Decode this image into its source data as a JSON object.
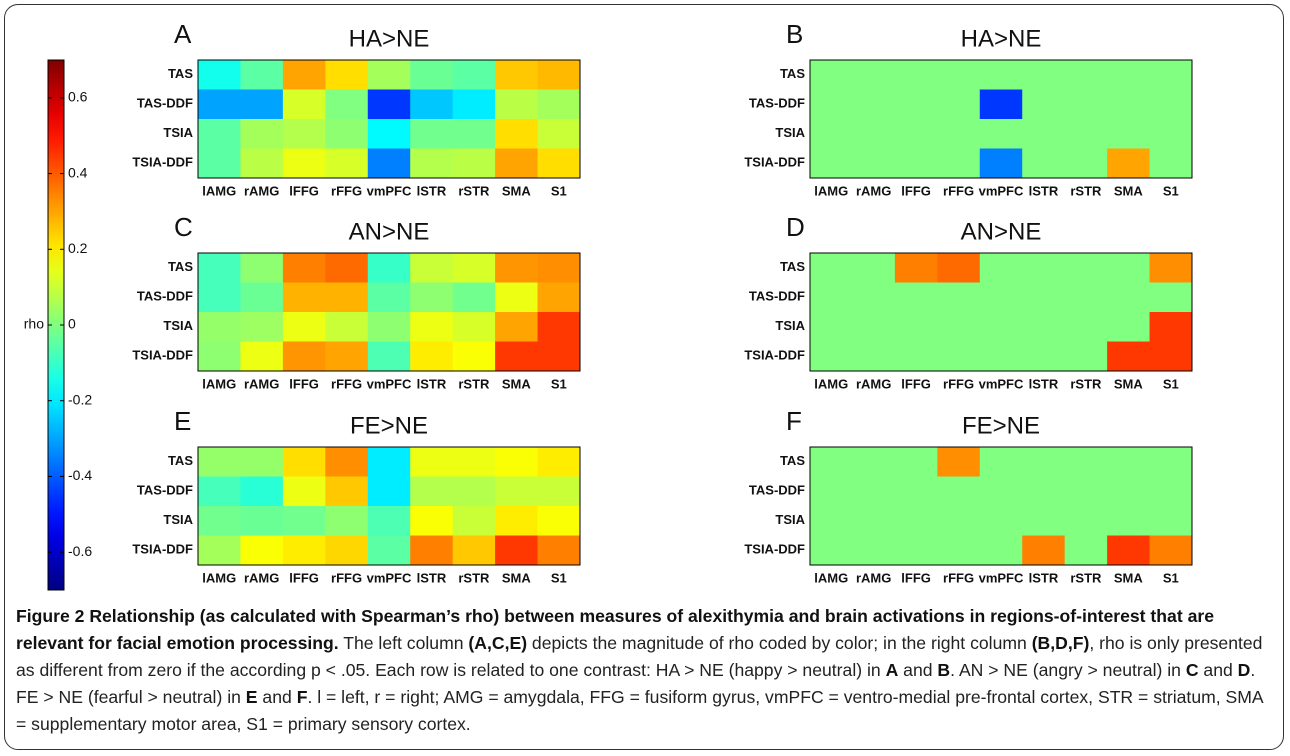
{
  "colorbar": {
    "label": "rho",
    "colormap": "jet",
    "zlim": [
      -0.7,
      0.7
    ],
    "ticks": [
      0.6,
      0.4,
      0.2,
      0,
      -0.2,
      -0.4,
      -0.6
    ]
  },
  "chart_data": [
    {
      "type": "heatmap",
      "panel": "A",
      "title": "HA>NE",
      "x_categories": [
        "lAMG",
        "rAMG",
        "lFFG",
        "rFFG",
        "vmPFC",
        "lSTR",
        "rSTR",
        "SMA",
        "S1"
      ],
      "y_categories": [
        "TAS",
        "TAS-DDF",
        "TSIA",
        "TSIA-DDF"
      ],
      "values": [
        [
          -0.15,
          -0.05,
          0.3,
          0.22,
          0.05,
          -0.03,
          -0.05,
          0.25,
          0.27
        ],
        [
          -0.3,
          -0.3,
          0.12,
          0.0,
          -0.45,
          -0.25,
          -0.2,
          0.08,
          0.05
        ],
        [
          -0.05,
          0.05,
          0.07,
          0.02,
          -0.18,
          -0.02,
          -0.02,
          0.22,
          0.1
        ],
        [
          -0.05,
          0.08,
          0.15,
          0.12,
          -0.35,
          0.07,
          0.08,
          0.3,
          0.22
        ]
      ]
    },
    {
      "type": "heatmap",
      "panel": "B",
      "title": "HA>NE",
      "x_categories": [
        "lAMG",
        "rAMG",
        "lFFG",
        "rFFG",
        "vmPFC",
        "lSTR",
        "rSTR",
        "SMA",
        "S1"
      ],
      "y_categories": [
        "TAS",
        "TAS-DDF",
        "TSIA",
        "TSIA-DDF"
      ],
      "values": [
        [
          0,
          0,
          0,
          0,
          0,
          0,
          0,
          0,
          0
        ],
        [
          0,
          0,
          0,
          0,
          -0.45,
          0,
          0,
          0,
          0
        ],
        [
          0,
          0,
          0,
          0,
          0,
          0,
          0,
          0,
          0
        ],
        [
          0,
          0,
          0,
          0,
          -0.35,
          0,
          0,
          0.3,
          0
        ]
      ]
    },
    {
      "type": "heatmap",
      "panel": "C",
      "title": "AN>NE",
      "x_categories": [
        "lAMG",
        "rAMG",
        "lFFG",
        "rFFG",
        "vmPFC",
        "lSTR",
        "rSTR",
        "SMA",
        "S1"
      ],
      "y_categories": [
        "TAS",
        "TAS-DDF",
        "TSIA",
        "TSIA-DDF"
      ],
      "values": [
        [
          -0.08,
          0.02,
          0.35,
          0.38,
          -0.1,
          0.1,
          0.12,
          0.32,
          0.33
        ],
        [
          -0.08,
          -0.03,
          0.28,
          0.28,
          -0.05,
          0.02,
          -0.02,
          0.15,
          0.3
        ],
        [
          0.03,
          0.04,
          0.15,
          0.1,
          0.02,
          0.15,
          0.12,
          0.3,
          0.45
        ],
        [
          0.02,
          0.15,
          0.32,
          0.3,
          -0.07,
          0.2,
          0.17,
          0.45,
          0.45
        ]
      ]
    },
    {
      "type": "heatmap",
      "panel": "D",
      "title": "AN>NE",
      "x_categories": [
        "lAMG",
        "rAMG",
        "lFFG",
        "rFFG",
        "vmPFC",
        "lSTR",
        "rSTR",
        "SMA",
        "S1"
      ],
      "y_categories": [
        "TAS",
        "TAS-DDF",
        "TSIA",
        "TSIA-DDF"
      ],
      "values": [
        [
          0,
          0,
          0.35,
          0.38,
          0,
          0,
          0,
          0,
          0.33
        ],
        [
          0,
          0,
          0,
          0,
          0,
          0,
          0,
          0,
          0
        ],
        [
          0,
          0,
          0,
          0,
          0,
          0,
          0,
          0,
          0.45
        ],
        [
          0,
          0,
          0,
          0,
          0,
          0,
          0,
          0.45,
          0.45
        ]
      ]
    },
    {
      "type": "heatmap",
      "panel": "E",
      "title": "FE>NE",
      "x_categories": [
        "lAMG",
        "rAMG",
        "lFFG",
        "rFFG",
        "vmPFC",
        "lSTR",
        "rSTR",
        "SMA",
        "S1"
      ],
      "y_categories": [
        "TAS",
        "TAS-DDF",
        "TSIA",
        "TSIA-DDF"
      ],
      "values": [
        [
          0.03,
          0.03,
          0.22,
          0.33,
          -0.2,
          0.15,
          0.15,
          0.17,
          0.2
        ],
        [
          -0.08,
          -0.12,
          0.15,
          0.25,
          -0.2,
          0.07,
          0.07,
          0.1,
          0.1
        ],
        [
          -0.02,
          -0.03,
          -0.02,
          0.02,
          -0.07,
          0.17,
          0.1,
          0.2,
          0.17
        ],
        [
          0.05,
          0.17,
          0.2,
          0.23,
          -0.05,
          0.35,
          0.25,
          0.45,
          0.35
        ]
      ]
    },
    {
      "type": "heatmap",
      "panel": "F",
      "title": "FE>NE",
      "x_categories": [
        "lAMG",
        "rAMG",
        "lFFG",
        "rFFG",
        "vmPFC",
        "lSTR",
        "rSTR",
        "SMA",
        "S1"
      ],
      "y_categories": [
        "TAS",
        "TAS-DDF",
        "TSIA",
        "TSIA-DDF"
      ],
      "values": [
        [
          0,
          0,
          0,
          0.33,
          0,
          0,
          0,
          0,
          0
        ],
        [
          0,
          0,
          0,
          0,
          0,
          0,
          0,
          0,
          0
        ],
        [
          0,
          0,
          0,
          0,
          0,
          0,
          0,
          0,
          0
        ],
        [
          0,
          0,
          0,
          0,
          0,
          0.35,
          0,
          0.45,
          0.35
        ]
      ]
    }
  ],
  "caption": [
    {
      "text": "Figure 2 Relationship (as calculated with Spearman’s rho) between measures of alexithymia and brain activations in regions-of-interest that are relevant for facial emotion processing.",
      "bold": true
    },
    {
      "text": " The left column ",
      "bold": false
    },
    {
      "text": "(A,C,E)",
      "bold": true
    },
    {
      "text": " depicts the magnitude of rho coded by color; in the right column ",
      "bold": false
    },
    {
      "text": "(B,D,F)",
      "bold": true
    },
    {
      "text": ", rho is only presented as different from zero if the according p < .05. Each row is related to one contrast: HA > NE (happy > neutral) in ",
      "bold": false
    },
    {
      "text": "A",
      "bold": true
    },
    {
      "text": " and ",
      "bold": false
    },
    {
      "text": "B",
      "bold": true
    },
    {
      "text": ". AN > NE (angry > neutral) in ",
      "bold": false
    },
    {
      "text": "C",
      "bold": true
    },
    {
      "text": " and ",
      "bold": false
    },
    {
      "text": "D",
      "bold": true
    },
    {
      "text": ". FE > NE (fearful > neutral) in ",
      "bold": false
    },
    {
      "text": "E",
      "bold": true
    },
    {
      "text": " and ",
      "bold": false
    },
    {
      "text": "F",
      "bold": true
    },
    {
      "text": ". l = left, r = right; AMG = amygdala, FFG = fusiform gyrus, vmPFC = ventro-medial pre-frontal cortex, STR = striatum, SMA = supplementary motor area, S1 = primary sensory cortex.",
      "bold": false
    }
  ]
}
